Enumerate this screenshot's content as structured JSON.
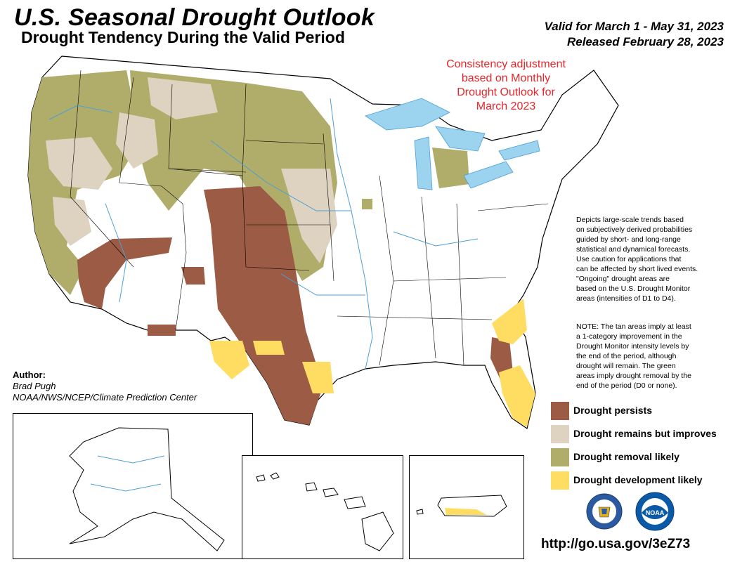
{
  "header": {
    "title": "U.S. Seasonal Drought Outlook",
    "subtitle": "Drought Tendency During the Valid Period",
    "valid": "Valid for March 1 - May 31, 2023",
    "released": "Released February 28, 2023"
  },
  "consistency_note": [
    "Consistency adjustment",
    "based on Monthly",
    "Drought Outlook for",
    "March 2023"
  ],
  "description": [
    "Depicts large-scale trends based",
    "on subjectively derived probabilities",
    "guided by short- and long-range",
    "statistical and dynamical forecasts.",
    "Use caution for applications that",
    "can be affected by short lived events.",
    "\"Ongoing\" drought areas are",
    "based on the U.S. Drought Monitor",
    "areas (intensities of D1 to D4)."
  ],
  "note": [
    "NOTE: The tan areas imply at least",
    "a 1-category improvement in the",
    "Drought Monitor intensity levels by",
    "the end of the period, although",
    "drought will remain. The green",
    "areas imply drought removal by the",
    "end of the period (D0 or none)."
  ],
  "author": {
    "label": "Author:",
    "name": "Brad Pugh",
    "org": "NOAA/NWS/NCEP/Climate Prediction Center"
  },
  "legend": [
    {
      "label": "Drought persists",
      "color": "#9c5b44"
    },
    {
      "label": "Drought remains but improves",
      "color": "#ddd3c0"
    },
    {
      "label": "Drought removal likely",
      "color": "#b0ac6a"
    },
    {
      "label": "Drought development likely",
      "color": "#ffdd63"
    }
  ],
  "colors": {
    "water": "#9cd3ef",
    "rivers": "#4c9fd7",
    "boundaries": "#000000"
  },
  "logos": [
    "commerce-seal",
    "noaa-logo"
  ],
  "logo_text": {
    "noaa": "NOAA"
  },
  "insets": [
    "alaska",
    "hawaii",
    "puerto-rico"
  ],
  "url": "http://go.usa.gov/3eZ73"
}
